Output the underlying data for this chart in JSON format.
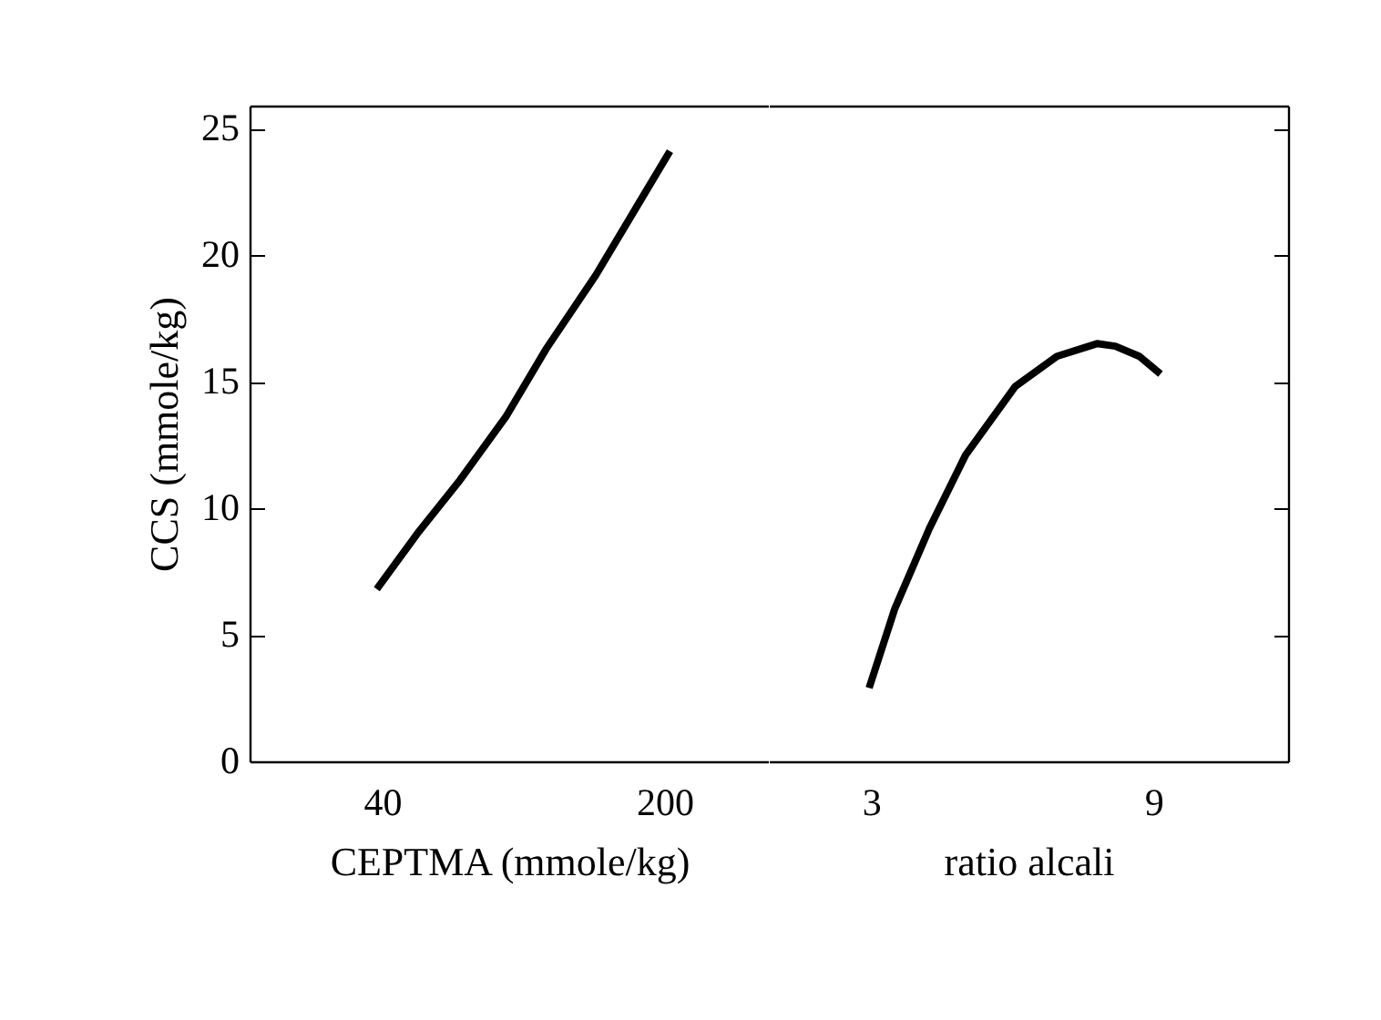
{
  "chart_data": [
    {
      "type": "line",
      "xlabel": "CEPTMA (mmole/kg)",
      "ylabel": "CCS (mmole/kg)",
      "x": [
        37,
        60,
        84,
        110,
        133,
        161,
        185,
        203
      ],
      "series": [
        {
          "color": "#000000",
          "values": [
            6.8,
            9.0,
            11.1,
            13.6,
            16.3,
            19.2,
            22.0,
            24.1
          ]
        }
      ],
      "xlim": [
        -35,
        259
      ],
      "xticks": [
        40,
        200
      ],
      "ylim": [
        0,
        25.9
      ],
      "yticks": [
        0,
        5,
        10,
        15,
        20,
        25
      ],
      "grid": false
    },
    {
      "type": "line",
      "xlabel": "ratio alcali",
      "x": [
        2.96,
        3.5,
        4.24,
        5.01,
        6.06,
        6.95,
        7.8,
        8.19,
        8.7,
        9.15
      ],
      "series": [
        {
          "color": "#000000",
          "values": [
            2.9,
            6.0,
            9.2,
            12.1,
            14.8,
            16.0,
            16.5,
            16.4,
            16.0,
            15.3
          ]
        }
      ],
      "xlim": [
        0.83,
        11.86
      ],
      "xticks": [
        3,
        9
      ],
      "ylim": [
        0,
        25.9
      ],
      "yticks": [
        0,
        5,
        10,
        15,
        20,
        25
      ],
      "tick_labels": "x",
      "grid": false
    }
  ]
}
